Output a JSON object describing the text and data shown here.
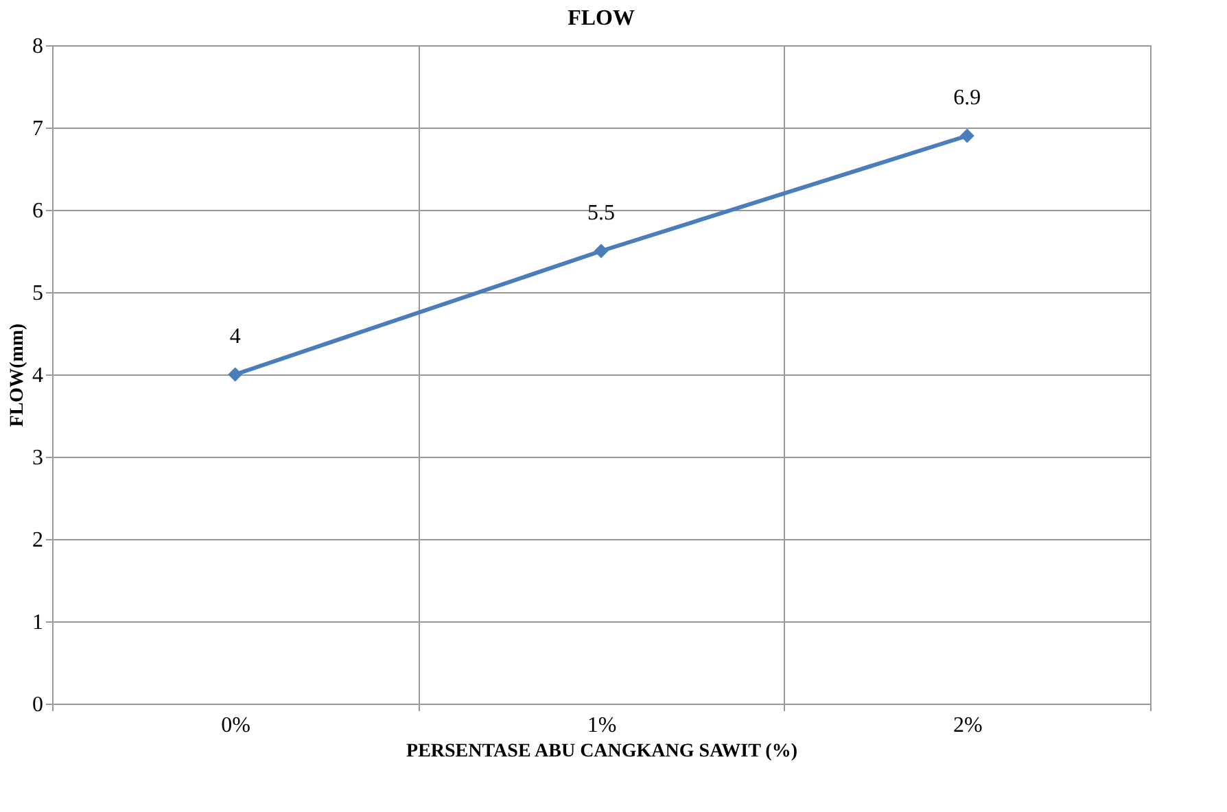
{
  "chart_data": {
    "type": "line",
    "title": "FLOW",
    "xlabel": "PERSENTASE ABU CANGKANG SAWIT (%)",
    "ylabel": "FLOW(mm)",
    "categories": [
      "0%",
      "1%",
      "2%"
    ],
    "series": [
      {
        "color": "#4a7ebb",
        "values": [
          4,
          5.5,
          6.9
        ]
      }
    ],
    "ylim": [
      0,
      8
    ],
    "yticks": [
      0,
      1,
      2,
      3,
      4,
      5,
      6,
      7,
      8
    ],
    "grid": true,
    "data_labels": true,
    "marker": "diamond",
    "line_style": "solid",
    "legend": false
  }
}
